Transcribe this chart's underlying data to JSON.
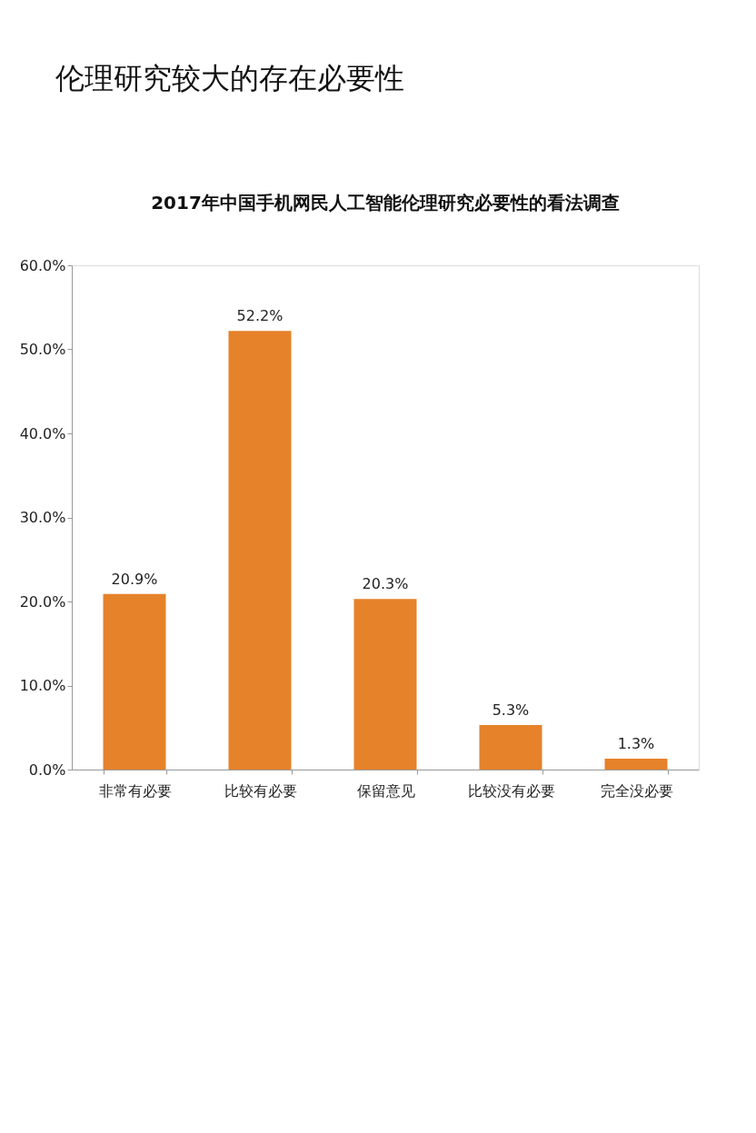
{
  "chart_data": {
    "type": "bar",
    "title": "伦理研究较大的存在必要性",
    "subtitle": "2017年中国手机网民人工智能伦理研究必要性的看法调查",
    "categories": [
      "非常有必要",
      "比较有必要",
      "保留意见",
      "比较没有必要",
      "完全没必要"
    ],
    "values": [
      20.9,
      52.2,
      20.3,
      5.3,
      1.3
    ],
    "value_labels": [
      "20.9%",
      "52.2%",
      "20.3%",
      "5.3%",
      "1.3%"
    ],
    "color": "#e6822a",
    "ylim": [
      0,
      60
    ],
    "yticks": [
      {
        "value": 0,
        "label": "0.0%"
      },
      {
        "value": 10,
        "label": "10.0%"
      },
      {
        "value": 20,
        "label": "20.0%"
      },
      {
        "value": 30,
        "label": "30.0%"
      },
      {
        "value": 40,
        "label": "40.0%"
      },
      {
        "value": 50,
        "label": "50.0%"
      },
      {
        "value": 60,
        "label": "60.0%"
      }
    ],
    "grid": false
  }
}
